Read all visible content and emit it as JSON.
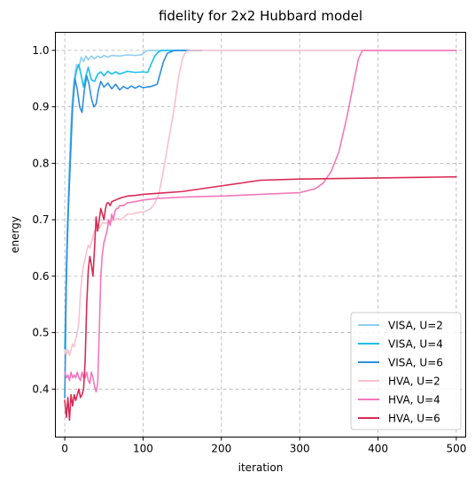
{
  "chart_data": {
    "type": "line",
    "title": "fidelity for 2x2 Hubbard model",
    "xlabel": "iteration",
    "ylabel": "energy",
    "xlim": [
      -12,
      512
    ],
    "ylim": [
      0.315,
      1.032
    ],
    "xticks": [
      0,
      100,
      200,
      300,
      400,
      500
    ],
    "yticks": [
      0.4,
      0.5,
      0.6,
      0.7,
      0.8,
      0.9,
      1.0
    ],
    "xtick_labels": [
      "0",
      "100",
      "200",
      "300",
      "400",
      "500"
    ],
    "ytick_labels": [
      "0.4",
      "0.5",
      "0.6",
      "0.7",
      "0.8",
      "0.9",
      "1.0"
    ],
    "grid": true,
    "legend_position": "lower-right",
    "series": [
      {
        "name": "VISA, U=2",
        "color": "#8ecff0",
        "points": [
          [
            0,
            0.47
          ],
          [
            3,
            0.68
          ],
          [
            6,
            0.8
          ],
          [
            9,
            0.9
          ],
          [
            12,
            0.95
          ],
          [
            15,
            0.975
          ],
          [
            18,
            0.97
          ],
          [
            21,
            0.988
          ],
          [
            24,
            0.98
          ],
          [
            27,
            0.99
          ],
          [
            30,
            0.983
          ],
          [
            34,
            0.99
          ],
          [
            38,
            0.985
          ],
          [
            42,
            0.99
          ],
          [
            46,
            0.987
          ],
          [
            50,
            0.991
          ],
          [
            55,
            0.988
          ],
          [
            60,
            0.991
          ],
          [
            70,
            0.99
          ],
          [
            80,
            0.992
          ],
          [
            90,
            0.991
          ],
          [
            98,
            0.992
          ],
          [
            103,
            0.998
          ],
          [
            107,
            1.0
          ],
          [
            120,
            1.0
          ],
          [
            130,
            1.0
          ],
          [
            140,
            1.0
          ],
          [
            150,
            1.0
          ],
          [
            160,
            1.0
          ],
          [
            175,
            1.0
          ]
        ]
      },
      {
        "name": "VISA, U=4",
        "color": "#1bbfe8",
        "points": [
          [
            0,
            0.47
          ],
          [
            3,
            0.65
          ],
          [
            6,
            0.78
          ],
          [
            9,
            0.88
          ],
          [
            12,
            0.94
          ],
          [
            15,
            0.965
          ],
          [
            18,
            0.975
          ],
          [
            21,
            0.955
          ],
          [
            24,
            0.935
          ],
          [
            27,
            0.955
          ],
          [
            30,
            0.97
          ],
          [
            34,
            0.948
          ],
          [
            38,
            0.945
          ],
          [
            42,
            0.958
          ],
          [
            46,
            0.962
          ],
          [
            50,
            0.955
          ],
          [
            55,
            0.963
          ],
          [
            60,
            0.958
          ],
          [
            65,
            0.962
          ],
          [
            70,
            0.958
          ],
          [
            80,
            0.963
          ],
          [
            90,
            0.961
          ],
          [
            100,
            0.962
          ],
          [
            106,
            0.961
          ],
          [
            110,
            0.975
          ],
          [
            115,
            0.99
          ],
          [
            120,
            0.998
          ],
          [
            125,
            1.0
          ],
          [
            140,
            1.0
          ],
          [
            160,
            1.0
          ],
          [
            175,
            1.0
          ]
        ]
      },
      {
        "name": "VISA, U=6",
        "color": "#2d8fe0",
        "points": [
          [
            0,
            0.385
          ],
          [
            2,
            0.6
          ],
          [
            4,
            0.7
          ],
          [
            7,
            0.8
          ],
          [
            10,
            0.9
          ],
          [
            13,
            0.95
          ],
          [
            16,
            0.93
          ],
          [
            19,
            0.9
          ],
          [
            22,
            0.89
          ],
          [
            25,
            0.93
          ],
          [
            28,
            0.955
          ],
          [
            31,
            0.94
          ],
          [
            34,
            0.915
          ],
          [
            37,
            0.9
          ],
          [
            40,
            0.905
          ],
          [
            43,
            0.93
          ],
          [
            46,
            0.945
          ],
          [
            50,
            0.935
          ],
          [
            55,
            0.942
          ],
          [
            60,
            0.932
          ],
          [
            65,
            0.94
          ],
          [
            70,
            0.93
          ],
          [
            75,
            0.936
          ],
          [
            80,
            0.932
          ],
          [
            85,
            0.937
          ],
          [
            90,
            0.933
          ],
          [
            95,
            0.937
          ],
          [
            100,
            0.934
          ],
          [
            110,
            0.936
          ],
          [
            118,
            0.94
          ],
          [
            122,
            0.96
          ],
          [
            126,
            0.98
          ],
          [
            131,
            0.995
          ],
          [
            140,
            1.0
          ],
          [
            160,
            1.0
          ],
          [
            175,
            1.0
          ]
        ]
      },
      {
        "name": "HVA, U=2",
        "color": "#f9c1cf",
        "points": [
          [
            0,
            0.47
          ],
          [
            2,
            0.46
          ],
          [
            4,
            0.47
          ],
          [
            6,
            0.46
          ],
          [
            8,
            0.47
          ],
          [
            10,
            0.48
          ],
          [
            12,
            0.475
          ],
          [
            14,
            0.49
          ],
          [
            16,
            0.5
          ],
          [
            18,
            0.52
          ],
          [
            20,
            0.57
          ],
          [
            22,
            0.6
          ],
          [
            24,
            0.62
          ],
          [
            26,
            0.63
          ],
          [
            28,
            0.645
          ],
          [
            30,
            0.655
          ],
          [
            32,
            0.65
          ],
          [
            34,
            0.66
          ],
          [
            36,
            0.67
          ],
          [
            38,
            0.68
          ],
          [
            40,
            0.68
          ],
          [
            42,
            0.69
          ],
          [
            44,
            0.685
          ],
          [
            46,
            0.69
          ],
          [
            48,
            0.695
          ],
          [
            52,
            0.693
          ],
          [
            56,
            0.698
          ],
          [
            60,
            0.698
          ],
          [
            64,
            0.7
          ],
          [
            68,
            0.702
          ],
          [
            72,
            0.7
          ],
          [
            76,
            0.705
          ],
          [
            80,
            0.71
          ],
          [
            85,
            0.71
          ],
          [
            90,
            0.712
          ],
          [
            95,
            0.713
          ],
          [
            100,
            0.714
          ],
          [
            105,
            0.716
          ],
          [
            110,
            0.72
          ],
          [
            115,
            0.73
          ],
          [
            120,
            0.745
          ],
          [
            125,
            0.78
          ],
          [
            130,
            0.82
          ],
          [
            135,
            0.86
          ],
          [
            140,
            0.9
          ],
          [
            145,
            0.95
          ],
          [
            150,
            0.985
          ],
          [
            155,
            0.998
          ],
          [
            160,
            1.0
          ],
          [
            175,
            1.0
          ],
          [
            200,
            1.0
          ],
          [
            250,
            1.0
          ],
          [
            300,
            1.0
          ],
          [
            350,
            1.0
          ],
          [
            400,
            1.0
          ],
          [
            450,
            1.0
          ],
          [
            500,
            1.0
          ]
        ]
      },
      {
        "name": "HVA, U=4",
        "color": "#f477bb",
        "points": [
          [
            0,
            0.43
          ],
          [
            2,
            0.42
          ],
          [
            4,
            0.425
          ],
          [
            6,
            0.415
          ],
          [
            8,
            0.43
          ],
          [
            10,
            0.42
          ],
          [
            12,
            0.425
          ],
          [
            14,
            0.42
          ],
          [
            16,
            0.43
          ],
          [
            18,
            0.42
          ],
          [
            20,
            0.415
          ],
          [
            22,
            0.43
          ],
          [
            24,
            0.42
          ],
          [
            26,
            0.42
          ],
          [
            28,
            0.43
          ],
          [
            30,
            0.415
          ],
          [
            32,
            0.41
          ],
          [
            34,
            0.43
          ],
          [
            36,
            0.42
          ],
          [
            38,
            0.405
          ],
          [
            40,
            0.395
          ],
          [
            42,
            0.41
          ],
          [
            44,
            0.5
          ],
          [
            46,
            0.6
          ],
          [
            48,
            0.64
          ],
          [
            50,
            0.66
          ],
          [
            52,
            0.67
          ],
          [
            54,
            0.68
          ],
          [
            56,
            0.7
          ],
          [
            58,
            0.69
          ],
          [
            60,
            0.71
          ],
          [
            62,
            0.7
          ],
          [
            64,
            0.715
          ],
          [
            66,
            0.72
          ],
          [
            68,
            0.72
          ],
          [
            70,
            0.725
          ],
          [
            75,
            0.725
          ],
          [
            80,
            0.73
          ],
          [
            90,
            0.732
          ],
          [
            100,
            0.735
          ],
          [
            120,
            0.738
          ],
          [
            150,
            0.74
          ],
          [
            200,
            0.742
          ],
          [
            250,
            0.745
          ],
          [
            300,
            0.748
          ],
          [
            320,
            0.755
          ],
          [
            330,
            0.765
          ],
          [
            340,
            0.785
          ],
          [
            350,
            0.82
          ],
          [
            360,
            0.88
          ],
          [
            370,
            0.95
          ],
          [
            375,
            0.985
          ],
          [
            380,
            1.0
          ],
          [
            390,
            1.0
          ],
          [
            400,
            1.0
          ],
          [
            450,
            1.0
          ],
          [
            500,
            1.0
          ]
        ]
      },
      {
        "name": "HVA, U=6",
        "color": "#d92b55",
        "points": [
          [
            0,
            0.38
          ],
          [
            2,
            0.35
          ],
          [
            4,
            0.385
          ],
          [
            6,
            0.345
          ],
          [
            8,
            0.39
          ],
          [
            10,
            0.37
          ],
          [
            12,
            0.39
          ],
          [
            14,
            0.38
          ],
          [
            16,
            0.39
          ],
          [
            18,
            0.4
          ],
          [
            20,
            0.385
          ],
          [
            22,
            0.39
          ],
          [
            24,
            0.4
          ],
          [
            26,
            0.45
          ],
          [
            28,
            0.55
          ],
          [
            30,
            0.61
          ],
          [
            32,
            0.635
          ],
          [
            34,
            0.62
          ],
          [
            36,
            0.6
          ],
          [
            38,
            0.65
          ],
          [
            40,
            0.705
          ],
          [
            42,
            0.68
          ],
          [
            44,
            0.7
          ],
          [
            46,
            0.72
          ],
          [
            48,
            0.71
          ],
          [
            50,
            0.7
          ],
          [
            52,
            0.72
          ],
          [
            54,
            0.73
          ],
          [
            56,
            0.73
          ],
          [
            58,
            0.725
          ],
          [
            60,
            0.732
          ],
          [
            65,
            0.735
          ],
          [
            70,
            0.738
          ],
          [
            75,
            0.74
          ],
          [
            80,
            0.742
          ],
          [
            90,
            0.743
          ],
          [
            100,
            0.745
          ],
          [
            120,
            0.747
          ],
          [
            150,
            0.75
          ],
          [
            200,
            0.76
          ],
          [
            250,
            0.77
          ],
          [
            300,
            0.772
          ],
          [
            350,
            0.773
          ],
          [
            400,
            0.774
          ],
          [
            450,
            0.775
          ],
          [
            500,
            0.776
          ]
        ]
      }
    ]
  }
}
